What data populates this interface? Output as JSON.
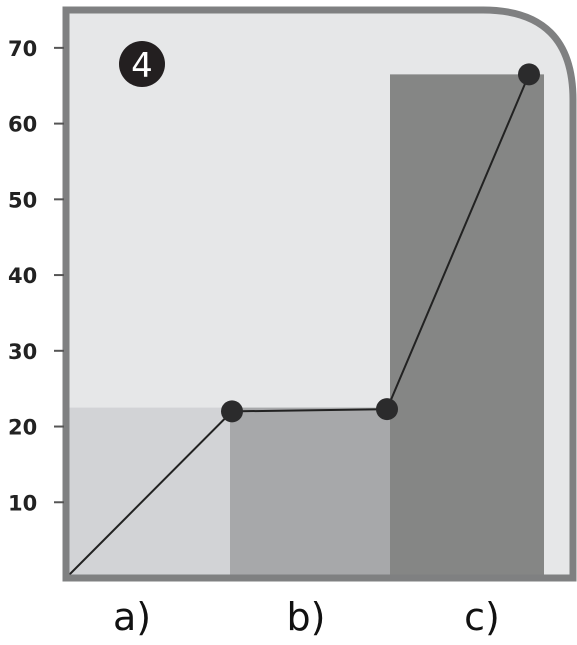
{
  "chart_data": {
    "type": "bar",
    "categories": [
      "a)",
      "b)",
      "c)"
    ],
    "bars": [
      {
        "category": "a)",
        "value": 22.5,
        "color": "#d2d3d6"
      },
      {
        "category": "b)",
        "value": 22.5,
        "color": "#a7a8aa"
      },
      {
        "category": "c)",
        "value": 66.5,
        "color": "#858685"
      }
    ],
    "line": {
      "x": [
        0,
        1,
        2,
        3
      ],
      "y": [
        0,
        22,
        22.3,
        66.5
      ],
      "color": "#222222",
      "marker_color": "#2b2b2c"
    },
    "yticks": [
      10,
      20,
      30,
      40,
      50,
      60,
      70
    ],
    "ylim": [
      0,
      75
    ],
    "title": "",
    "xlabel": "",
    "ylabel": "",
    "grid": false,
    "badge": "4",
    "colors": {
      "plot_background": "#e6e7e8",
      "frame": "#7f8081",
      "badge": "#231f20"
    }
  }
}
